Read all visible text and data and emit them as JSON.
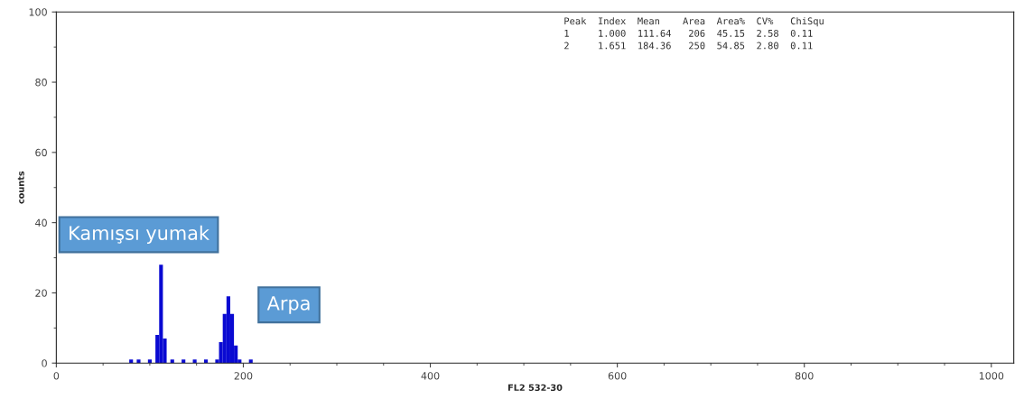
{
  "chart_data": {
    "type": "histogram",
    "xlabel": "FL2 532-30",
    "ylabel": "counts",
    "bins": [
      78,
      82,
      86,
      90,
      94,
      98,
      102,
      106,
      110,
      114,
      118,
      122,
      126,
      130,
      134,
      138,
      142,
      146,
      150,
      154,
      158,
      162,
      166,
      170,
      174,
      178,
      182,
      186,
      190,
      194,
      198,
      202,
      206,
      210,
      214,
      218,
      222
    ],
    "values": [
      1,
      0,
      1,
      0,
      0,
      1,
      0,
      8,
      28,
      7,
      0,
      1,
      0,
      0,
      1,
      0,
      0,
      1,
      0,
      0,
      1,
      0,
      0,
      1,
      6,
      14,
      19,
      14,
      5,
      1,
      0,
      0,
      1,
      0,
      0,
      0
    ],
    "color": "#0a0ad2",
    "xlim": [
      0,
      1024
    ],
    "xticks": [
      0,
      200,
      400,
      600,
      800,
      1000
    ],
    "ylim": [
      0,
      100
    ],
    "yticks": [
      0,
      20,
      40,
      60,
      80,
      100
    ],
    "annotations": [
      "Peak  Index  Mean    Area  Area%  CV%   ChiSqu",
      "1     1.000  111.64   206  45.15  2.58  0.11",
      "2     1.651  184.36   250  54.85  2.80  0.11",
      "Kamışsı yumak",
      "Arpa"
    ]
  }
}
